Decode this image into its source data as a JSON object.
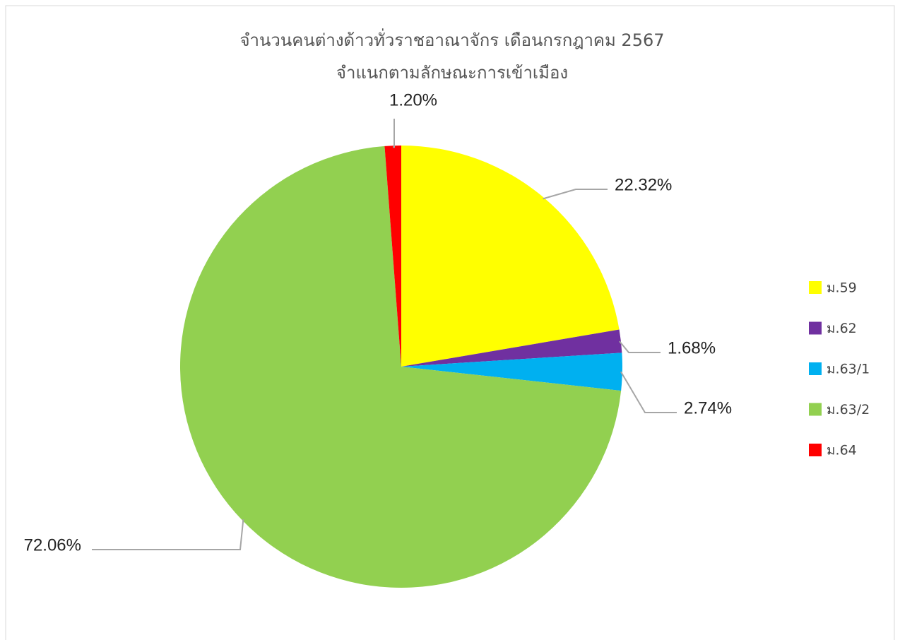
{
  "chart_data": {
    "type": "pie",
    "title": "จำนวนคนต่างด้าวทั่วราชอาณาจักร เดือนกรกฎาคม 2567",
    "subtitle": "จำแนกตามลักษณะการเข้าเมือง",
    "categories": [
      "ม.59",
      "ม.62",
      "ม.63/1",
      "ม.63/2",
      "ม.64"
    ],
    "values": [
      22.32,
      1.68,
      2.74,
      72.06,
      1.2
    ],
    "value_labels": [
      "22.32%",
      "1.68%",
      "2.74%",
      "72.06%",
      "1.20%"
    ],
    "colors": [
      "#ffff00",
      "#7030a0",
      "#00b0f0",
      "#92d050",
      "#ff0000"
    ],
    "legend": "right"
  }
}
